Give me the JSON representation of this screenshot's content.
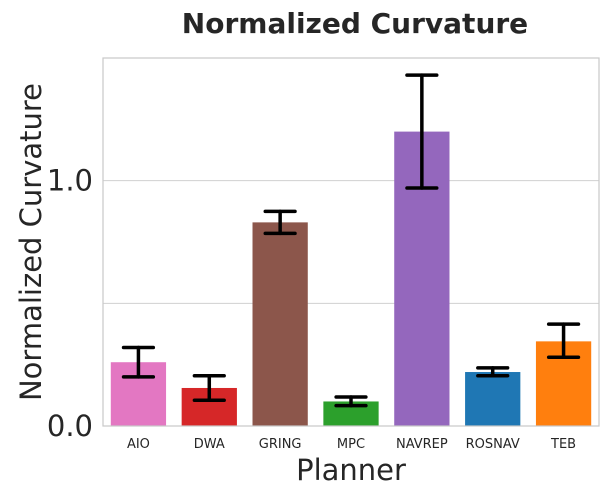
{
  "chart_data": {
    "type": "bar",
    "title": "Normalized Curvature",
    "xlabel": "Planner",
    "ylabel": "Normalized Curvature",
    "categories": [
      "AIO",
      "DWA",
      "GRING",
      "MPC",
      "NAVREP",
      "ROSNAV",
      "TEB"
    ],
    "values": [
      0.26,
      0.155,
      0.83,
      0.1,
      1.2,
      0.22,
      0.345
    ],
    "error_low": [
      0.2,
      0.105,
      0.785,
      0.083,
      0.97,
      0.205,
      0.28
    ],
    "error_high": [
      0.32,
      0.205,
      0.875,
      0.118,
      1.43,
      0.237,
      0.415
    ],
    "colors": [
      "#e377c2",
      "#d62728",
      "#8c564b",
      "#2ca02c",
      "#9467bd",
      "#1f77b4",
      "#ff7f0e"
    ],
    "ylim": [
      0,
      1.5
    ],
    "yticks": [
      0.0,
      1.0
    ],
    "ytick_labels": [
      "0.0",
      "1.0"
    ],
    "grid": true,
    "legend": "none"
  }
}
